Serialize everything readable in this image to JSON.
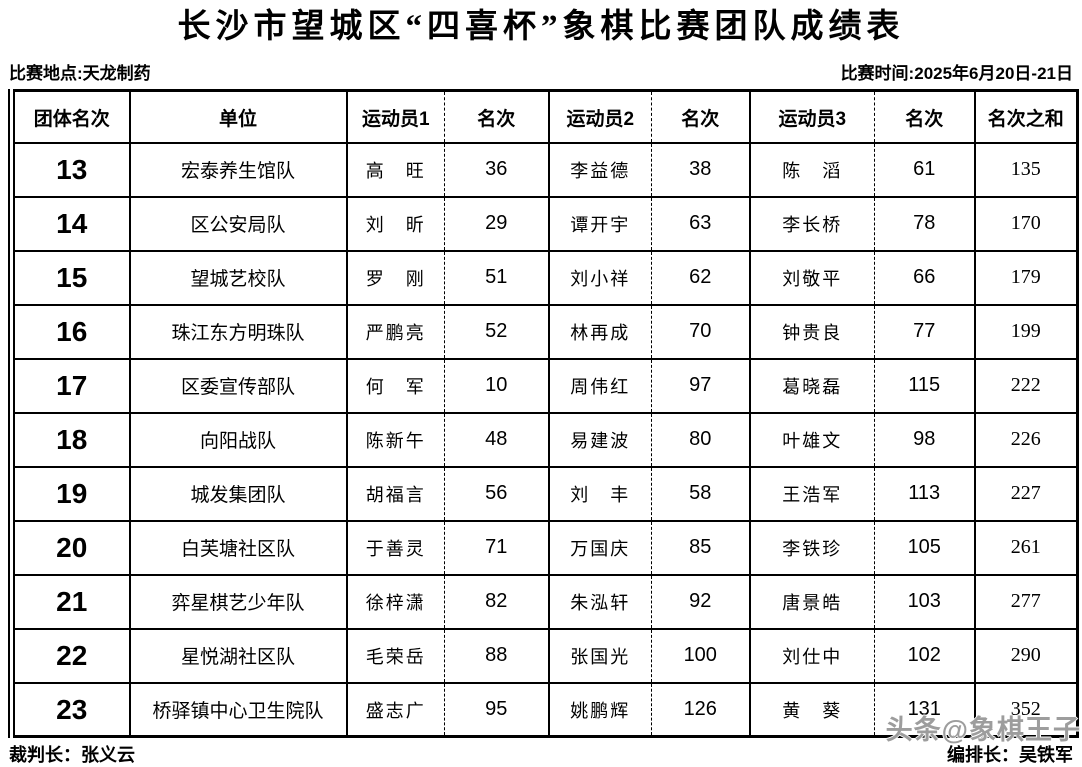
{
  "title": "长沙市望城区“四喜杯”象棋比赛团队成绩表",
  "meta": {
    "venue_label": "比赛地点:",
    "venue_value": "天龙制药",
    "time_label": "比赛时间:",
    "time_value": "2025年6月20日-21日"
  },
  "table": {
    "headers": [
      "团体名次",
      "单位",
      "运动员1",
      "名次",
      "运动员2",
      "名次",
      "运动员3",
      "名次",
      "名次之和"
    ],
    "rows": [
      {
        "team_rank": "13",
        "unit": "宏泰养生馆队",
        "player1": "高　旺",
        "rank1": "36",
        "player2": "李益德",
        "rank2": "38",
        "player3": "陈　滔",
        "rank3": "61",
        "rank_sum": "135"
      },
      {
        "team_rank": "14",
        "unit": "区公安局队",
        "player1": "刘　昕",
        "rank1": "29",
        "player2": "谭开宇",
        "rank2": "63",
        "player3": "李长桥",
        "rank3": "78",
        "rank_sum": "170"
      },
      {
        "team_rank": "15",
        "unit": "望城艺校队",
        "player1": "罗　刚",
        "rank1": "51",
        "player2": "刘小祥",
        "rank2": "62",
        "player3": "刘敬平",
        "rank3": "66",
        "rank_sum": "179"
      },
      {
        "team_rank": "16",
        "unit": "珠江东方明珠队",
        "player1": "严鹏亮",
        "rank1": "52",
        "player2": "林再成",
        "rank2": "70",
        "player3": "钟贵良",
        "rank3": "77",
        "rank_sum": "199"
      },
      {
        "team_rank": "17",
        "unit": "区委宣传部队",
        "player1": "何　军",
        "rank1": "10",
        "player2": "周伟红",
        "rank2": "97",
        "player3": "葛晓磊",
        "rank3": "115",
        "rank_sum": "222"
      },
      {
        "team_rank": "18",
        "unit": "向阳战队",
        "player1": "陈新午",
        "rank1": "48",
        "player2": "易建波",
        "rank2": "80",
        "player3": "叶雄文",
        "rank3": "98",
        "rank_sum": "226"
      },
      {
        "team_rank": "19",
        "unit": "城发集团队",
        "player1": "胡福言",
        "rank1": "56",
        "player2": "刘　丰",
        "rank2": "58",
        "player3": "王浩军",
        "rank3": "113",
        "rank_sum": "227"
      },
      {
        "team_rank": "20",
        "unit": "白芙塘社区队",
        "player1": "于善灵",
        "rank1": "71",
        "player2": "万国庆",
        "rank2": "85",
        "player3": "李铁珍",
        "rank3": "105",
        "rank_sum": "261"
      },
      {
        "team_rank": "21",
        "unit": "弈星棋艺少年队",
        "player1": "徐梓潇",
        "rank1": "82",
        "player2": "朱泓轩",
        "rank2": "92",
        "player3": "唐景皓",
        "rank3": "103",
        "rank_sum": "277"
      },
      {
        "team_rank": "22",
        "unit": "星悦湖社区队",
        "player1": "毛荣岳",
        "rank1": "88",
        "player2": "张国光",
        "rank2": "100",
        "player3": "刘仕中",
        "rank3": "102",
        "rank_sum": "290"
      },
      {
        "team_rank": "23",
        "unit": "桥驿镇中心卫生院队",
        "player1": "盛志广",
        "rank1": "95",
        "player2": "姚鹏辉",
        "rank2": "126",
        "player3": "黄　葵",
        "rank3": "131",
        "rank_sum": "352"
      }
    ]
  },
  "footer": {
    "referee_label": "裁判长：",
    "referee_name": "张义云",
    "arranger_label": "编排长：",
    "arranger_name": "吴铁军"
  },
  "watermark": "头条@象棋王子",
  "colors": {
    "text": "#000000",
    "background": "#ffffff",
    "border": "#000000",
    "watermark": "#9d9d9d"
  }
}
